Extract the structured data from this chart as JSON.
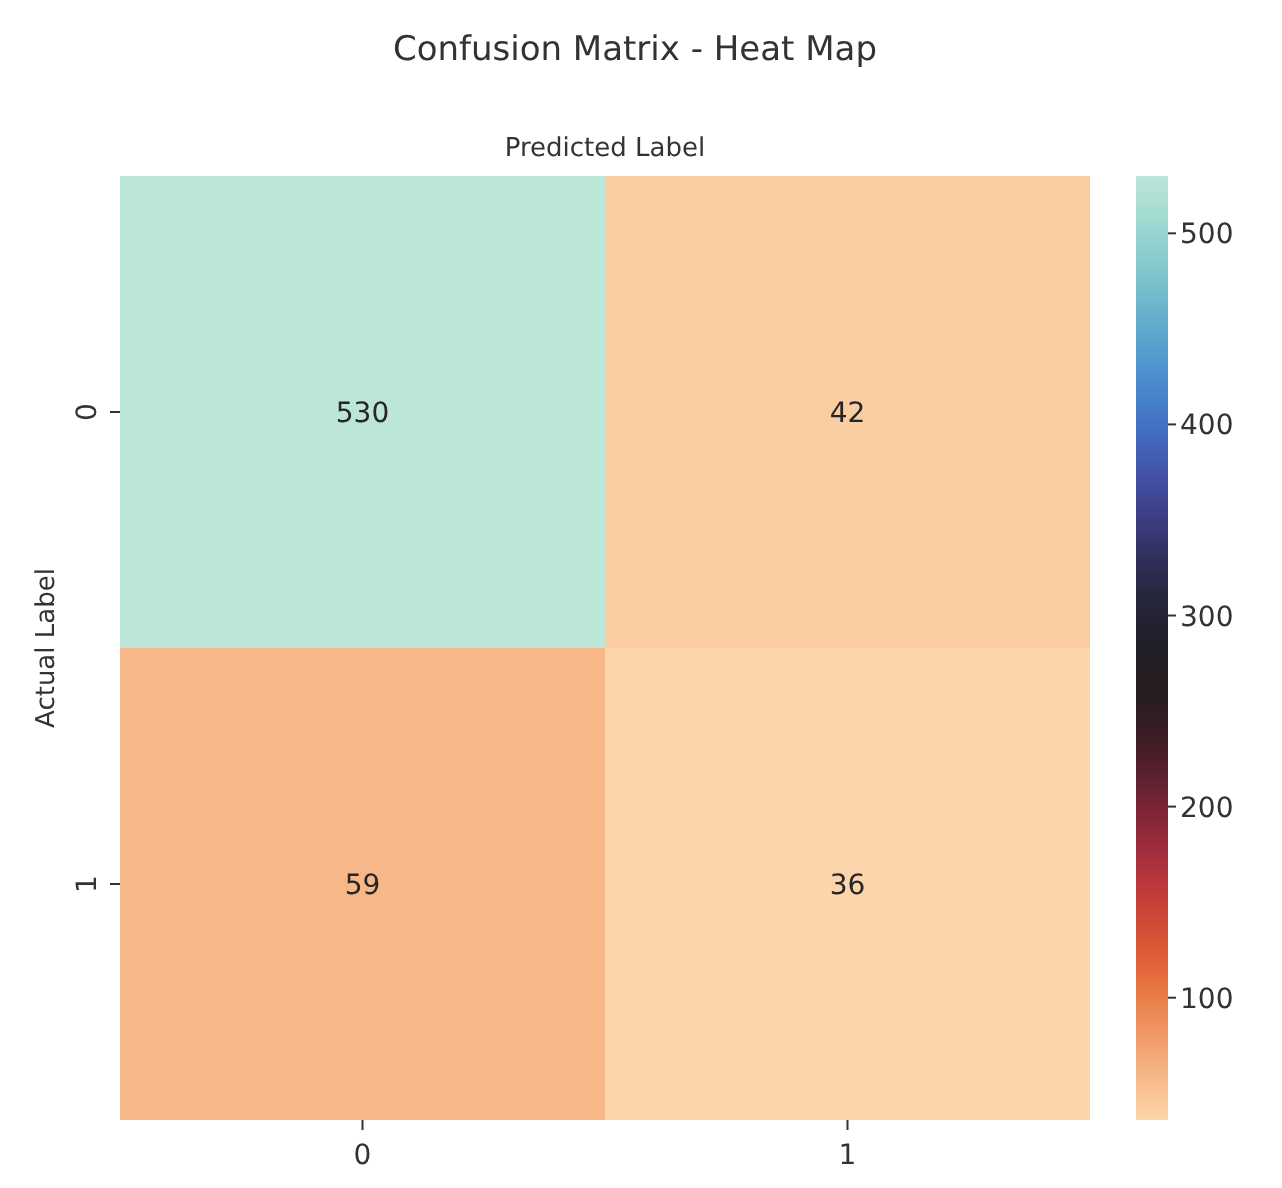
{
  "chart_data": {
    "type": "heatmap",
    "title": "Confusion Matrix - Heat Map",
    "xlabel": "Predicted Label",
    "ylabel": "Actual Label",
    "categories": [
      "0",
      "1"
    ],
    "y_categories": [
      "0",
      "1"
    ],
    "cells": [
      [
        530,
        42
      ],
      [
        59,
        36
      ]
    ],
    "data_labels": true,
    "clim": [
      36,
      530
    ],
    "cticks": [
      100,
      200,
      300,
      400,
      500
    ]
  }
}
